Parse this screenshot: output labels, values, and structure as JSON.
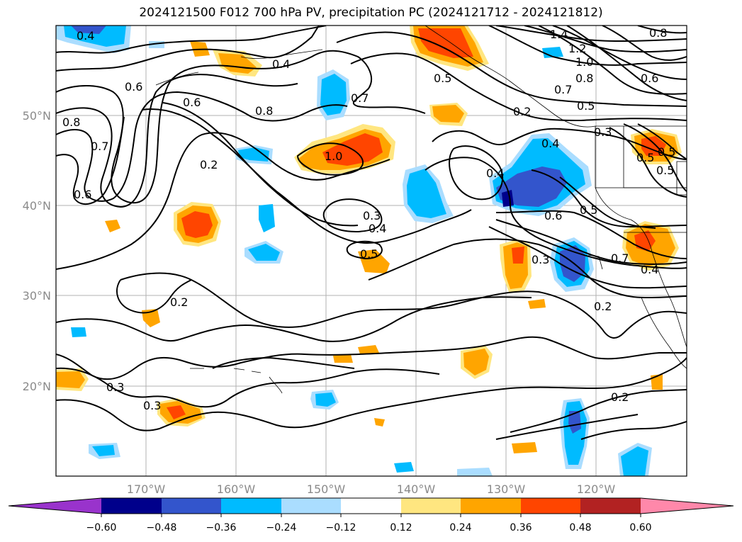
{
  "title": "2024121500 F012 700 hPa PV, precipitation PC (2024121712 - 2024121812)",
  "map": {
    "lat_labels": [
      "50°N",
      "40°N",
      "30°N",
      "20°N"
    ],
    "lon_labels": [
      "170°W",
      "160°W",
      "150°W",
      "140°W",
      "130°W",
      "120°W"
    ]
  },
  "contour_labels": [
    "0.4",
    "0.4",
    "0.8",
    "0.7",
    "0.5",
    "1.4",
    "1.2",
    "1.0",
    "0.8",
    "0.7",
    "0.6",
    "0.5",
    "0.2",
    "0.3",
    "0.8",
    "0.7",
    "0.6",
    "0.6",
    "0.2",
    "1.0",
    "0.4",
    "0.4",
    "0.5",
    "0.3",
    "0.4",
    "0.5",
    "0.3",
    "0.2",
    "0.2",
    "0.3",
    "0.3",
    "0.2",
    "0.7",
    "0.4",
    "0.6",
    "0.5",
    "0.5",
    "0.5",
    "0.8",
    "0.6"
  ],
  "colorbar": {
    "labels": [
      "−0.60",
      "−0.48",
      "−0.36",
      "−0.24",
      "−0.12",
      "0.12",
      "0.24",
      "0.36",
      "0.48",
      "0.60"
    ],
    "colors": [
      "#9933cc",
      "#00008b",
      "#3355cc",
      "#00bbff",
      "#aaddff",
      "#ffffff",
      "#ffe680",
      "#ffa500",
      "#ff4500",
      "#b22222",
      "#ff88aa"
    ]
  }
}
